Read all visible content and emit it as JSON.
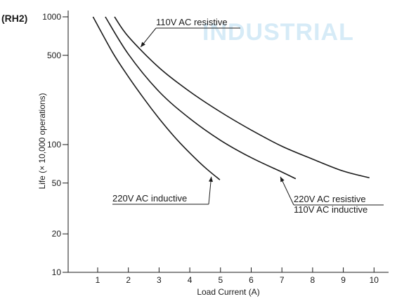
{
  "chart_data": {
    "type": "line",
    "panel_tag": "(RH2)",
    "watermark": "INDUSTRIAL",
    "xlabel": "Load Current (A)",
    "ylabel": "Life (× 10,000 operations)",
    "xlim": [
      0,
      10.5
    ],
    "ylim": [
      10,
      1000
    ],
    "yscale": "log",
    "x_ticks": [
      1,
      2,
      3,
      4,
      5,
      6,
      7,
      8,
      9,
      10
    ],
    "y_ticks": [
      10,
      20,
      50,
      100,
      500,
      1000
    ],
    "grid": false,
    "legend": "none",
    "series": [
      {
        "name": "110V AC resistive",
        "x": [
          1.55,
          2.0,
          3.0,
          4.0,
          5.0,
          6.0,
          7.0,
          8.0,
          9.0,
          9.85
        ],
        "y": [
          1000,
          700,
          400,
          260,
          180,
          130,
          97,
          77,
          62,
          55
        ]
      },
      {
        "name": "220V AC resistive / 110V AC inductive",
        "x": [
          1.25,
          2.0,
          3.0,
          4.0,
          5.0,
          6.0,
          7.0,
          7.45
        ],
        "y": [
          1000,
          510,
          260,
          160,
          108,
          79,
          61,
          54
        ]
      },
      {
        "name": "220V AC inductive",
        "x": [
          0.85,
          1.5,
          2.0,
          2.5,
          3.0,
          3.5,
          4.0,
          4.5,
          4.98
        ],
        "y": [
          1000,
          520,
          340,
          230,
          160,
          115,
          86,
          66,
          53
        ]
      }
    ],
    "annotations": [
      {
        "lines": [
          "110V AC resistive"
        ],
        "target": {
          "x": 2.4,
          "y": 580
        }
      },
      {
        "lines": [
          "220V AC resistive",
          "110V AC inductive"
        ],
        "target": {
          "x": 6.95,
          "y": 56
        }
      },
      {
        "lines": [
          "220V AC inductive"
        ],
        "target": {
          "x": 4.7,
          "y": 56
        }
      }
    ]
  }
}
